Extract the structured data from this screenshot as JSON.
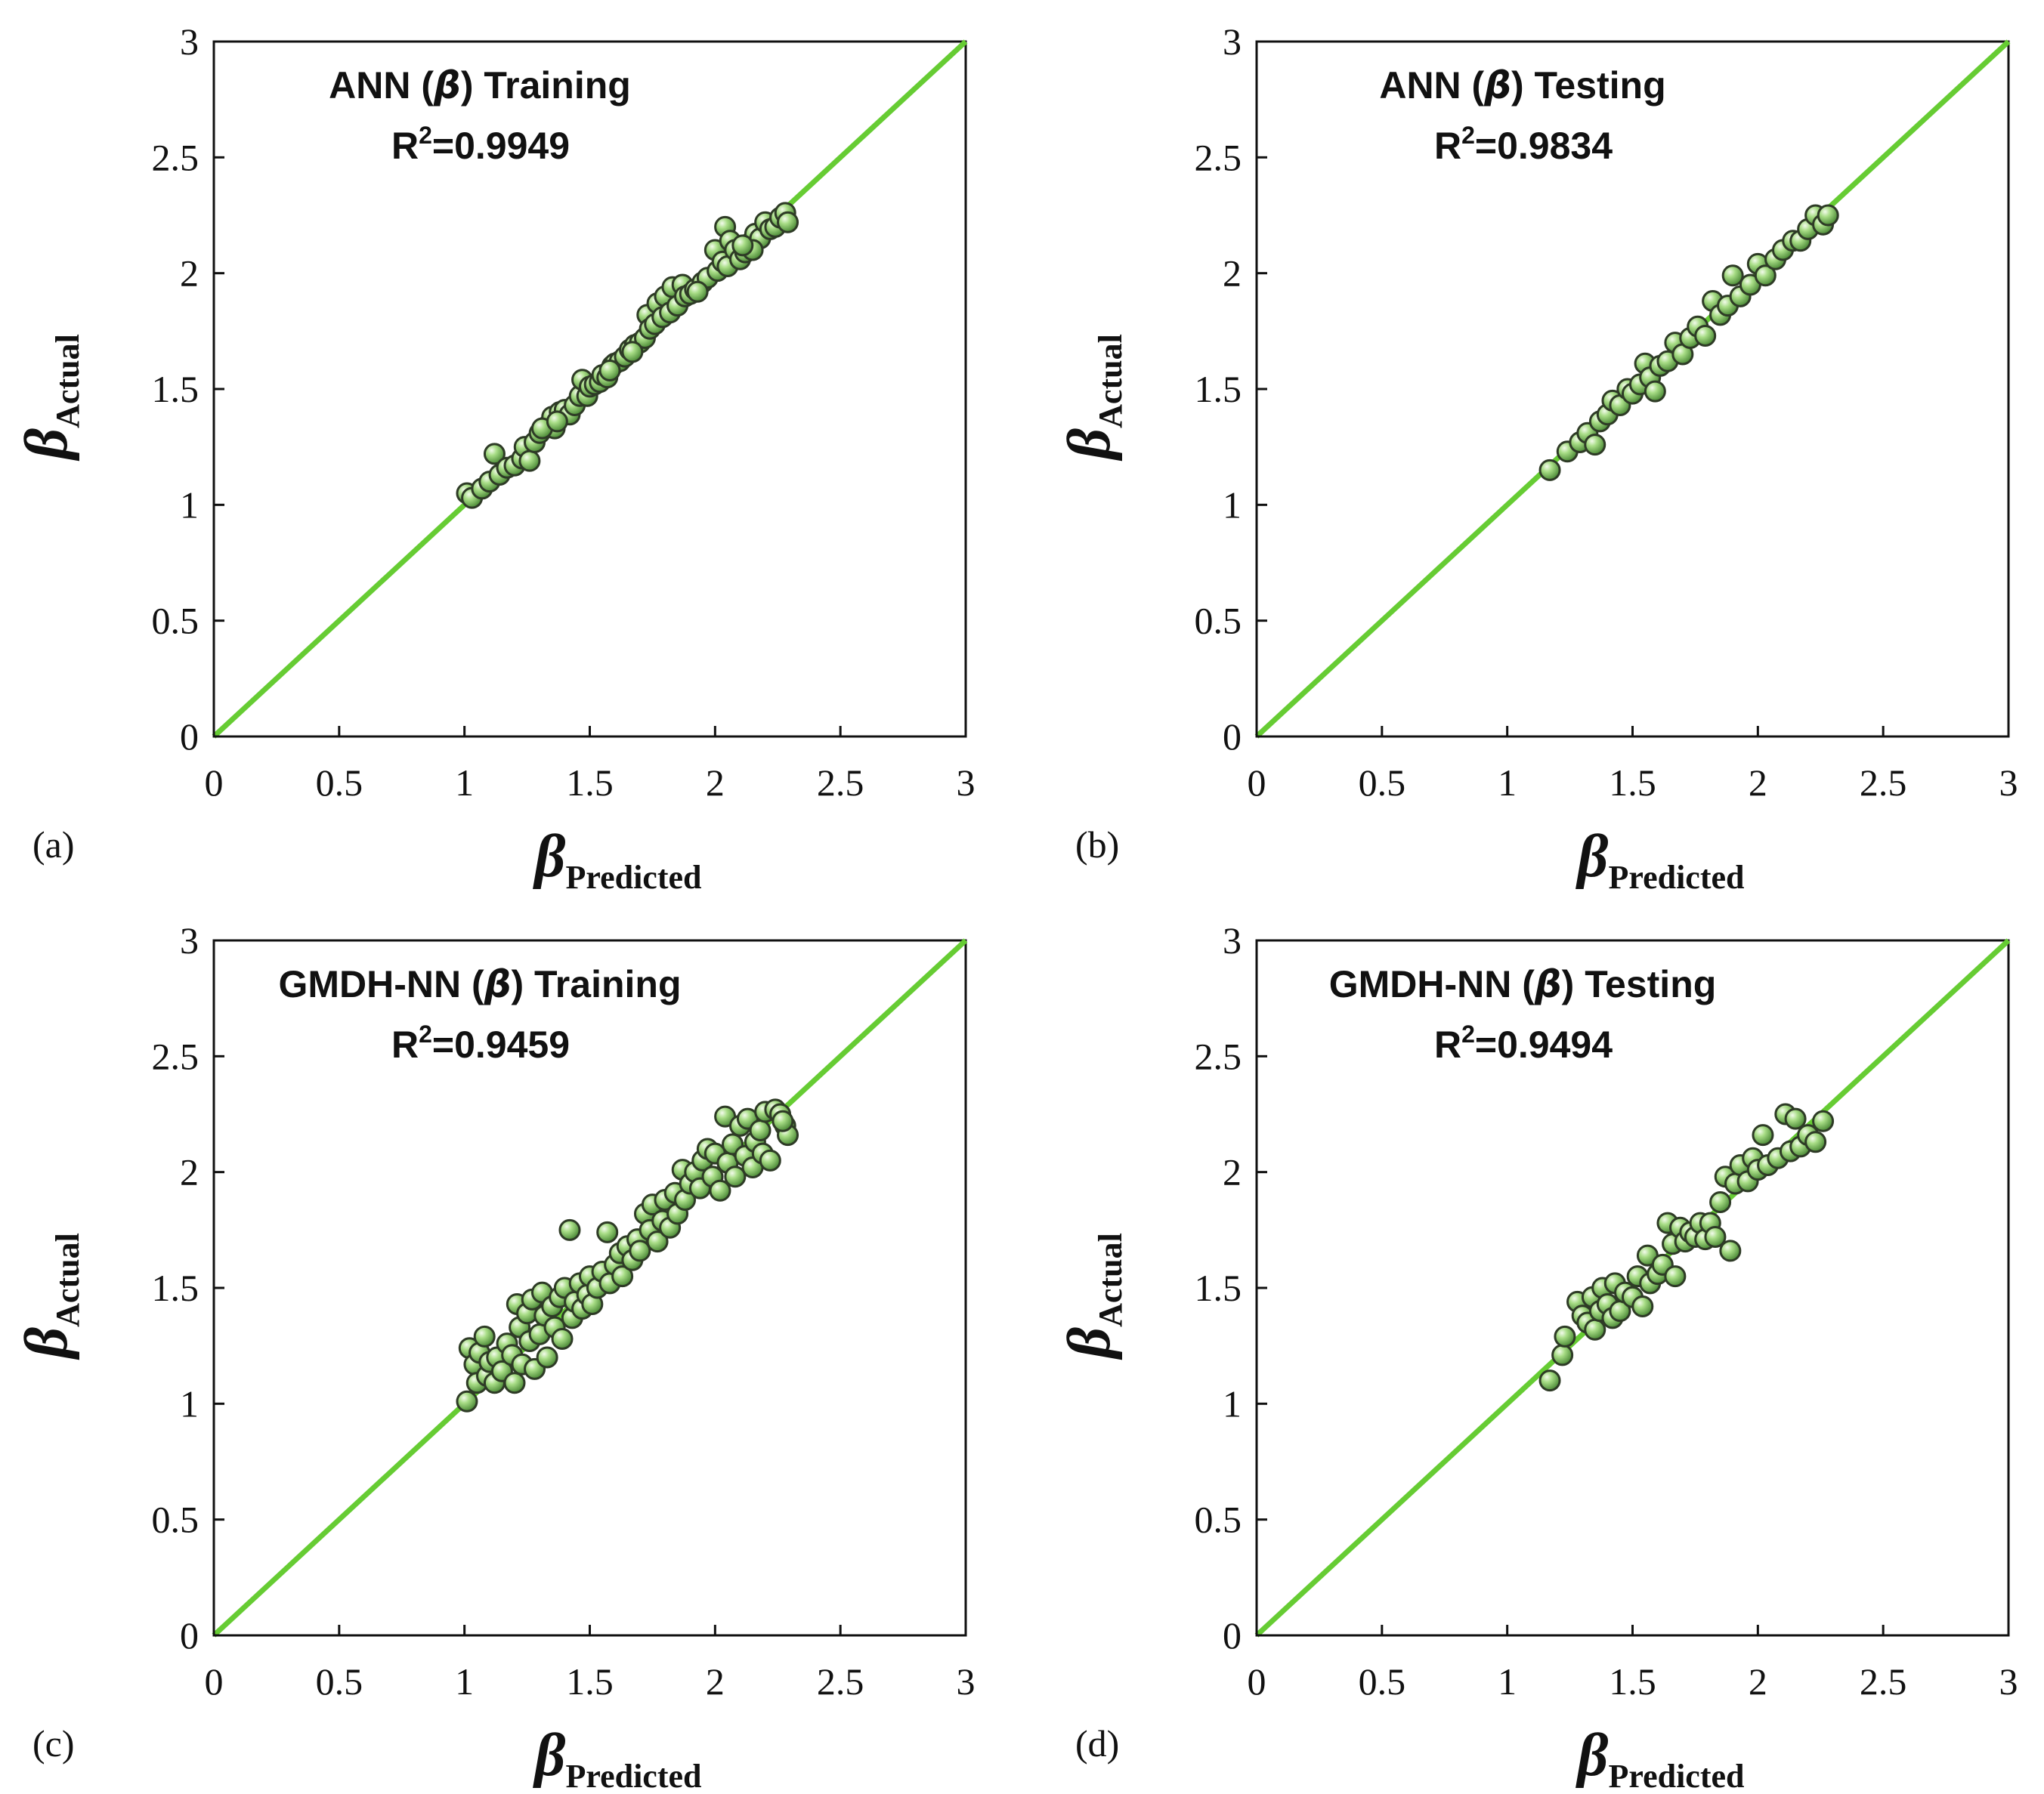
{
  "colors": {
    "diagonal": "#66cc33",
    "marker_fill": "#7fbf59",
    "marker_edge": "#2e3b26"
  },
  "chart_data": [
    {
      "type": "scatter",
      "panel_label": "(a)",
      "title_prefix": "ANN (",
      "title_symbol": "β",
      "title_suffix": ") Training",
      "r2_prefix": "R",
      "r2_sup": "2",
      "r2_value": "=0.9949",
      "xlabel_symbol": "β",
      "xlabel_sub": "Predicted",
      "ylabel_symbol": "β",
      "ylabel_sub": "Actual",
      "xlim": [
        0,
        3
      ],
      "ylim": [
        0,
        3
      ],
      "xticks": [
        "0",
        "0.5",
        "1",
        "1.5",
        "2",
        "2.5",
        "3"
      ],
      "yticks": [
        "0",
        "0.5",
        "1",
        "1.5",
        "2",
        "2.5",
        "3"
      ],
      "reference_line": [
        [
          0,
          0
        ],
        [
          3,
          3
        ]
      ],
      "points": [
        [
          1.01,
          1.05
        ],
        [
          1.03,
          1.03
        ],
        [
          1.07,
          1.07
        ],
        [
          1.1,
          1.1
        ],
        [
          1.12,
          1.22
        ],
        [
          1.14,
          1.13
        ],
        [
          1.17,
          1.16
        ],
        [
          1.2,
          1.17
        ],
        [
          1.23,
          1.2
        ],
        [
          1.24,
          1.25
        ],
        [
          1.26,
          1.19
        ],
        [
          1.28,
          1.27
        ],
        [
          1.3,
          1.31
        ],
        [
          1.33,
          1.34
        ],
        [
          1.35,
          1.38
        ],
        [
          1.36,
          1.33
        ],
        [
          1.38,
          1.4
        ],
        [
          1.4,
          1.41
        ],
        [
          1.42,
          1.39
        ],
        [
          1.44,
          1.43
        ],
        [
          1.46,
          1.47
        ],
        [
          1.47,
          1.54
        ],
        [
          1.49,
          1.47
        ],
        [
          1.5,
          1.51
        ],
        [
          1.52,
          1.52
        ],
        [
          1.54,
          1.53
        ],
        [
          1.55,
          1.56
        ],
        [
          1.57,
          1.55
        ],
        [
          1.59,
          1.6
        ],
        [
          1.6,
          1.61
        ],
        [
          1.62,
          1.62
        ],
        [
          1.64,
          1.64
        ],
        [
          1.66,
          1.67
        ],
        [
          1.68,
          1.69
        ],
        [
          1.7,
          1.7
        ],
        [
          1.72,
          1.72
        ],
        [
          1.73,
          1.82
        ],
        [
          1.74,
          1.76
        ],
        [
          1.76,
          1.78
        ],
        [
          1.77,
          1.87
        ],
        [
          1.79,
          1.81
        ],
        [
          1.8,
          1.9
        ],
        [
          1.82,
          1.83
        ],
        [
          1.83,
          1.94
        ],
        [
          1.85,
          1.86
        ],
        [
          1.87,
          1.95
        ],
        [
          1.88,
          1.9
        ],
        [
          1.9,
          1.91
        ],
        [
          1.92,
          1.93
        ],
        [
          1.95,
          1.96
        ],
        [
          1.97,
          1.98
        ],
        [
          2.0,
          2.1
        ],
        [
          2.01,
          2.01
        ],
        [
          2.03,
          2.05
        ],
        [
          2.04,
          2.2
        ],
        [
          2.05,
          2.03
        ],
        [
          2.06,
          2.14
        ],
        [
          2.08,
          2.1
        ],
        [
          2.1,
          2.06
        ],
        [
          2.12,
          2.09
        ],
        [
          2.14,
          2.13
        ],
        [
          2.16,
          2.17
        ],
        [
          2.18,
          2.15
        ],
        [
          2.2,
          2.22
        ],
        [
          2.22,
          2.19
        ],
        [
          2.24,
          2.2
        ],
        [
          2.26,
          2.24
        ],
        [
          2.28,
          2.26
        ],
        [
          2.29,
          2.22
        ],
        [
          2.15,
          2.1
        ],
        [
          1.31,
          1.33
        ],
        [
          1.37,
          1.36
        ],
        [
          1.58,
          1.58
        ],
        [
          1.67,
          1.66
        ],
        [
          1.93,
          1.92
        ],
        [
          2.11,
          2.12
        ]
      ]
    },
    {
      "type": "scatter",
      "panel_label": "(b)",
      "title_prefix": "ANN (",
      "title_symbol": "β",
      "title_suffix": ") Testing",
      "r2_prefix": "R",
      "r2_sup": "2",
      "r2_value": "=0.9834",
      "xlabel_symbol": "β",
      "xlabel_sub": "Predicted",
      "ylabel_symbol": "β",
      "ylabel_sub": "Actual",
      "xlim": [
        0,
        3
      ],
      "ylim": [
        0,
        3
      ],
      "xticks": [
        "0",
        "0.5",
        "1",
        "1.5",
        "2",
        "2.5",
        "3"
      ],
      "yticks": [
        "0",
        "0.5",
        "1",
        "1.5",
        "2",
        "2.5",
        "3"
      ],
      "reference_line": [
        [
          0,
          0
        ],
        [
          3,
          3
        ]
      ],
      "points": [
        [
          1.17,
          1.15
        ],
        [
          1.24,
          1.23
        ],
        [
          1.29,
          1.27
        ],
        [
          1.32,
          1.31
        ],
        [
          1.35,
          1.26
        ],
        [
          1.37,
          1.36
        ],
        [
          1.4,
          1.39
        ],
        [
          1.42,
          1.45
        ],
        [
          1.45,
          1.43
        ],
        [
          1.48,
          1.5
        ],
        [
          1.5,
          1.48
        ],
        [
          1.53,
          1.52
        ],
        [
          1.55,
          1.61
        ],
        [
          1.57,
          1.55
        ],
        [
          1.59,
          1.49
        ],
        [
          1.61,
          1.6
        ],
        [
          1.64,
          1.62
        ],
        [
          1.67,
          1.7
        ],
        [
          1.7,
          1.65
        ],
        [
          1.73,
          1.72
        ],
        [
          1.76,
          1.77
        ],
        [
          1.79,
          1.73
        ],
        [
          1.82,
          1.88
        ],
        [
          1.85,
          1.82
        ],
        [
          1.88,
          1.86
        ],
        [
          1.9,
          1.99
        ],
        [
          1.93,
          1.9
        ],
        [
          1.97,
          1.95
        ],
        [
          2.0,
          2.04
        ],
        [
          2.03,
          1.99
        ],
        [
          2.07,
          2.06
        ],
        [
          2.1,
          2.1
        ],
        [
          2.14,
          2.14
        ],
        [
          2.17,
          2.14
        ],
        [
          2.2,
          2.19
        ],
        [
          2.23,
          2.25
        ],
        [
          2.26,
          2.21
        ],
        [
          2.28,
          2.25
        ]
      ]
    },
    {
      "type": "scatter",
      "panel_label": "(c)",
      "title_prefix": "GMDH-NN (",
      "title_symbol": "β",
      "title_suffix": ") Training",
      "r2_prefix": "R",
      "r2_sup": "2",
      "r2_value": "=0.9459",
      "xlabel_symbol": "β",
      "xlabel_sub": "Predicted",
      "ylabel_symbol": "β",
      "ylabel_sub": "Actual",
      "xlim": [
        0,
        3
      ],
      "ylim": [
        0,
        3
      ],
      "xticks": [
        "0",
        "0.5",
        "1",
        "1.5",
        "2",
        "2.5",
        "3"
      ],
      "yticks": [
        "0",
        "0.5",
        "1",
        "1.5",
        "2",
        "2.5",
        "3"
      ],
      "reference_line": [
        [
          0,
          0
        ],
        [
          3,
          3
        ]
      ],
      "points": [
        [
          1.01,
          1.01
        ],
        [
          1.02,
          1.24
        ],
        [
          1.04,
          1.17
        ],
        [
          1.05,
          1.09
        ],
        [
          1.06,
          1.22
        ],
        [
          1.08,
          1.29
        ],
        [
          1.09,
          1.12
        ],
        [
          1.1,
          1.18
        ],
        [
          1.12,
          1.09
        ],
        [
          1.13,
          1.2
        ],
        [
          1.15,
          1.14
        ],
        [
          1.17,
          1.26
        ],
        [
          1.19,
          1.21
        ],
        [
          1.2,
          1.09
        ],
        [
          1.21,
          1.43
        ],
        [
          1.22,
          1.33
        ],
        [
          1.23,
          1.17
        ],
        [
          1.25,
          1.39
        ],
        [
          1.26,
          1.27
        ],
        [
          1.27,
          1.45
        ],
        [
          1.28,
          1.15
        ],
        [
          1.3,
          1.3
        ],
        [
          1.31,
          1.48
        ],
        [
          1.32,
          1.38
        ],
        [
          1.33,
          1.2
        ],
        [
          1.35,
          1.42
        ],
        [
          1.36,
          1.33
        ],
        [
          1.38,
          1.46
        ],
        [
          1.39,
          1.28
        ],
        [
          1.4,
          1.5
        ],
        [
          1.42,
          1.75
        ],
        [
          1.43,
          1.37
        ],
        [
          1.44,
          1.44
        ],
        [
          1.46,
          1.52
        ],
        [
          1.47,
          1.41
        ],
        [
          1.49,
          1.47
        ],
        [
          1.5,
          1.55
        ],
        [
          1.51,
          1.43
        ],
        [
          1.53,
          1.5
        ],
        [
          1.55,
          1.57
        ],
        [
          1.57,
          1.74
        ],
        [
          1.58,
          1.52
        ],
        [
          1.6,
          1.6
        ],
        [
          1.62,
          1.65
        ],
        [
          1.63,
          1.55
        ],
        [
          1.65,
          1.68
        ],
        [
          1.67,
          1.62
        ],
        [
          1.69,
          1.71
        ],
        [
          1.7,
          1.66
        ],
        [
          1.72,
          1.82
        ],
        [
          1.74,
          1.75
        ],
        [
          1.75,
          1.86
        ],
        [
          1.77,
          1.7
        ],
        [
          1.79,
          1.79
        ],
        [
          1.8,
          1.88
        ],
        [
          1.82,
          1.76
        ],
        [
          1.84,
          1.91
        ],
        [
          1.85,
          1.82
        ],
        [
          1.87,
          2.01
        ],
        [
          1.88,
          1.88
        ],
        [
          1.9,
          1.95
        ],
        [
          1.92,
          2.0
        ],
        [
          1.94,
          1.93
        ],
        [
          1.95,
          2.05
        ],
        [
          1.97,
          2.1
        ],
        [
          1.99,
          1.98
        ],
        [
          2.0,
          2.08
        ],
        [
          2.02,
          1.92
        ],
        [
          2.04,
          2.24
        ],
        [
          2.05,
          2.04
        ],
        [
          2.07,
          2.12
        ],
        [
          2.08,
          1.98
        ],
        [
          2.1,
          2.2
        ],
        [
          2.12,
          2.07
        ],
        [
          2.13,
          2.23
        ],
        [
          2.15,
          2.02
        ],
        [
          2.16,
          2.13
        ],
        [
          2.18,
          2.18
        ],
        [
          2.19,
          2.08
        ],
        [
          2.2,
          2.26
        ],
        [
          2.22,
          2.05
        ],
        [
          2.24,
          2.27
        ],
        [
          2.26,
          2.25
        ],
        [
          2.28,
          2.2
        ],
        [
          2.29,
          2.16
        ],
        [
          2.27,
          2.22
        ]
      ]
    },
    {
      "type": "scatter",
      "panel_label": "(d)",
      "title_prefix": "GMDH-NN (",
      "title_symbol": "β",
      "title_suffix": ") Testing",
      "r2_prefix": "R",
      "r2_sup": "2",
      "r2_value": "=0.9494",
      "xlabel_symbol": "β",
      "xlabel_sub": "Predicted",
      "ylabel_symbol": "β",
      "ylabel_sub": "Actual",
      "xlim": [
        0,
        3
      ],
      "ylim": [
        0,
        3
      ],
      "xticks": [
        "0",
        "0.5",
        "1",
        "1.5",
        "2",
        "2.5",
        "3"
      ],
      "yticks": [
        "0",
        "0.5",
        "1",
        "1.5",
        "2",
        "2.5",
        "3"
      ],
      "reference_line": [
        [
          0,
          0
        ],
        [
          3,
          3
        ]
      ],
      "points": [
        [
          1.17,
          1.1
        ],
        [
          1.22,
          1.21
        ],
        [
          1.23,
          1.29
        ],
        [
          1.28,
          1.44
        ],
        [
          1.3,
          1.38
        ],
        [
          1.32,
          1.35
        ],
        [
          1.34,
          1.46
        ],
        [
          1.35,
          1.32
        ],
        [
          1.37,
          1.4
        ],
        [
          1.38,
          1.5
        ],
        [
          1.4,
          1.43
        ],
        [
          1.42,
          1.37
        ],
        [
          1.43,
          1.52
        ],
        [
          1.45,
          1.4
        ],
        [
          1.47,
          1.48
        ],
        [
          1.5,
          1.46
        ],
        [
          1.52,
          1.55
        ],
        [
          1.54,
          1.42
        ],
        [
          1.56,
          1.64
        ],
        [
          1.57,
          1.52
        ],
        [
          1.6,
          1.56
        ],
        [
          1.62,
          1.6
        ],
        [
          1.64,
          1.78
        ],
        [
          1.66,
          1.69
        ],
        [
          1.67,
          1.55
        ],
        [
          1.69,
          1.76
        ],
        [
          1.71,
          1.7
        ],
        [
          1.73,
          1.74
        ],
        [
          1.75,
          1.72
        ],
        [
          1.77,
          1.78
        ],
        [
          1.79,
          1.71
        ],
        [
          1.81,
          1.78
        ],
        [
          1.83,
          1.72
        ],
        [
          1.85,
          1.87
        ],
        [
          1.87,
          1.98
        ],
        [
          1.89,
          1.66
        ],
        [
          1.91,
          1.95
        ],
        [
          1.93,
          2.03
        ],
        [
          1.96,
          1.96
        ],
        [
          1.98,
          2.06
        ],
        [
          2.0,
          2.01
        ],
        [
          2.02,
          2.16
        ],
        [
          2.04,
          2.03
        ],
        [
          2.08,
          2.06
        ],
        [
          2.11,
          2.25
        ],
        [
          2.13,
          2.09
        ],
        [
          2.15,
          2.23
        ],
        [
          2.17,
          2.11
        ],
        [
          2.2,
          2.16
        ],
        [
          2.23,
          2.13
        ],
        [
          2.26,
          2.22
        ]
      ]
    }
  ]
}
